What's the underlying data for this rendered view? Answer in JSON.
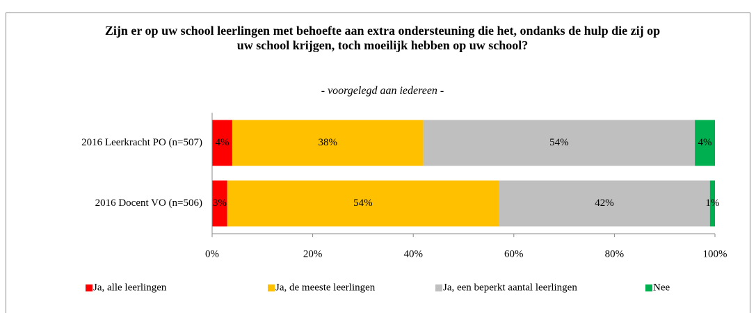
{
  "chart_data": {
    "type": "stacked_barh",
    "title": "Zijn er op uw school leerlingen met behoefte aan extra ondersteuning die het, ondanks de hulp die zij op uw school krijgen, toch moeilijk hebben op uw school?",
    "subtitle": "- voorgelegd aan iedereen -",
    "categories": [
      "2016 Leerkracht PO (n=507)",
      "2016 Docent VO (n=506)"
    ],
    "series": [
      {
        "name": "Ja, alle leerlingen",
        "color": "#ff0000",
        "values": [
          4,
          3
        ],
        "value_labels": [
          "4%",
          "3%"
        ]
      },
      {
        "name": "Ja, de meeste leerlingen",
        "color": "#ffc000",
        "values": [
          38,
          54
        ],
        "value_labels": [
          "38%",
          "54%"
        ]
      },
      {
        "name": "Ja, een beperkt aantal leerlingen",
        "color": "#bfbfbf",
        "values": [
          54,
          42
        ],
        "value_labels": [
          "54%",
          "42%"
        ]
      },
      {
        "name": "Nee",
        "color": "#00b050",
        "values": [
          4,
          1
        ],
        "value_labels": [
          "4%",
          "1%"
        ]
      }
    ],
    "xlim": [
      0,
      100
    ],
    "xticks": [
      {
        "value": 0,
        "label": "0%"
      },
      {
        "value": 20,
        "label": "20%"
      },
      {
        "value": 40,
        "label": "40%"
      },
      {
        "value": 60,
        "label": "60%"
      },
      {
        "value": 80,
        "label": "80%"
      },
      {
        "value": 100,
        "label": "100%"
      }
    ],
    "legend": "bottom"
  }
}
